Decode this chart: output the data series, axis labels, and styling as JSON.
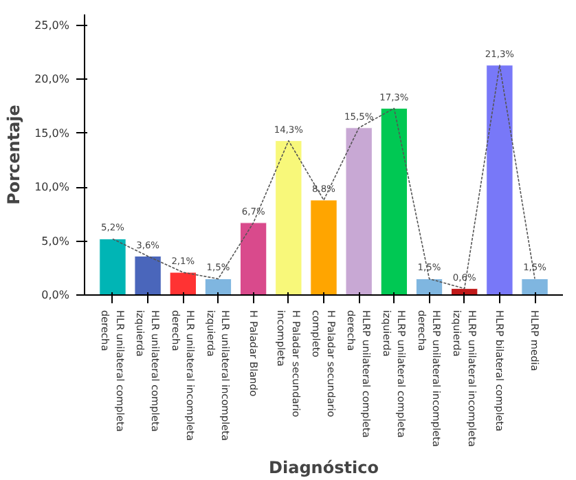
{
  "chart_data": {
    "type": "bar",
    "xlabel": "Diagnóstico",
    "ylabel": "Porcentaje",
    "categories": [
      "HLR unilateral completa derecha",
      "HLR unilateral completa izquierda",
      "HLR unilateral incompleta derecha",
      "HLR unilateral incompleta izquierda",
      "H Paladar Blando",
      "H Paladar secundario incompleta",
      "H Paladar secundario completo",
      "HLRP unilateral completa derecha",
      "HLRP unilateral completa izquierda",
      "HLRP unilateral incompleta derecha",
      "HLRP unilateral incompleta izquierda",
      "HLRP bilateral completa",
      "HLRP media"
    ],
    "series": [
      {
        "colors": [
          "#00b5b5",
          "#4a66bb",
          "#ff3333",
          "#7fb6e0",
          "#d94a8c",
          "#f8f87a",
          "#ffa500",
          "#c8a8d4",
          "#00c853",
          "#7fb6e0",
          "#c01a1a",
          "#7878f8",
          "#7fb6e0"
        ],
        "values": [
          5.2,
          3.6,
          2.1,
          1.5,
          6.7,
          14.3,
          8.8,
          15.5,
          17.3,
          1.5,
          0.6,
          21.3,
          1.5
        ],
        "value_labels": [
          "5,2%",
          "3,6%",
          "2,1%",
          "1,5%",
          "6,7%",
          "14,3%",
          "8,8%",
          "15,5%",
          "17,3%",
          "1,5%",
          "0,6%",
          "21,3%",
          "1,5%"
        ]
      },
      {
        "type": "line",
        "color": "#555555",
        "line_style": "dashed",
        "values": [
          5.2,
          3.6,
          2.1,
          1.5,
          6.7,
          14.3,
          8.8,
          15.5,
          17.3,
          1.5,
          0.6,
          21.3,
          1.5
        ]
      }
    ],
    "ylim": [
      0,
      26
    ],
    "yticks": [
      {
        "value": 0,
        "label": "0,0%"
      },
      {
        "value": 5,
        "label": "5,0%"
      },
      {
        "value": 10,
        "label": "10,0%"
      },
      {
        "value": 15,
        "label": "15,0%"
      },
      {
        "value": 20,
        "label": "20,0%"
      },
      {
        "value": 25,
        "label": "25,0%"
      }
    ],
    "grid": false
  }
}
